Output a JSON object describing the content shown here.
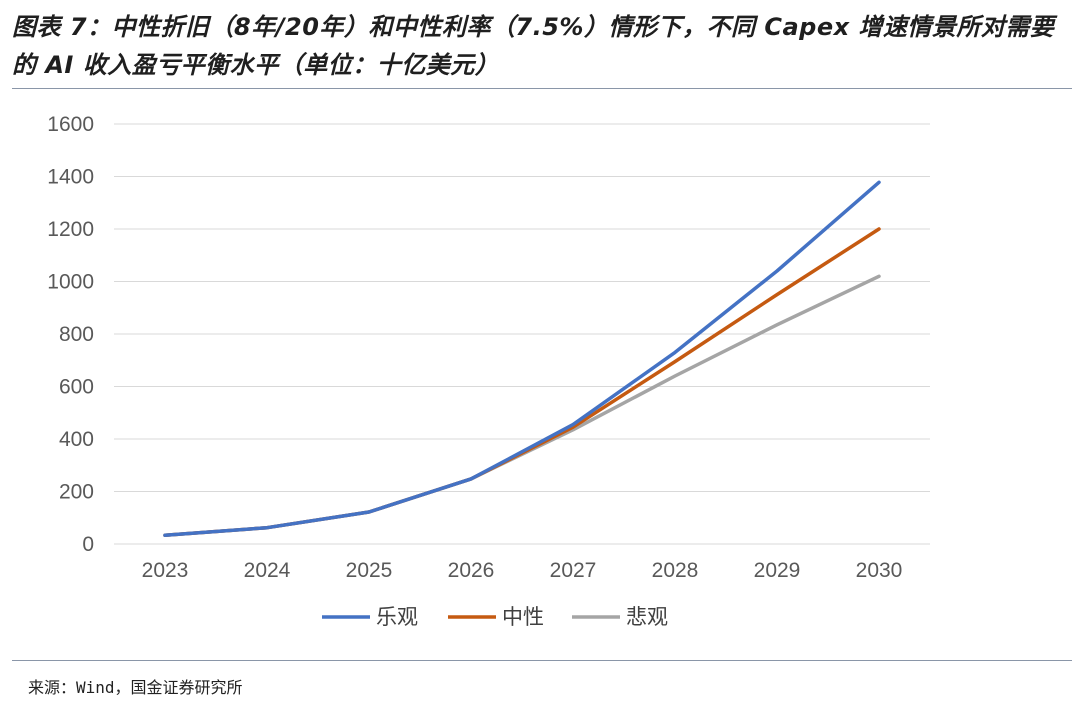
{
  "header": {
    "title": "图表 7：中性折旧（8年/20年）和中性利率（7.5%）情形下，不同 Capex 增速情景所对需要的 AI 收入盈亏平衡水平（单位：十亿美元）"
  },
  "footer": {
    "source": "来源：Wind，国金证券研究所"
  },
  "chart_data": {
    "type": "line",
    "title": "",
    "xlabel": "",
    "ylabel": "",
    "categories": [
      "2023",
      "2024",
      "2025",
      "2026",
      "2027",
      "2028",
      "2029",
      "2030"
    ],
    "ylim": [
      0,
      1600
    ],
    "yticks": [
      0,
      200,
      400,
      600,
      800,
      1000,
      1200,
      1400,
      1600
    ],
    "grid": true,
    "legend": "bottom",
    "series": [
      {
        "name": "乐观",
        "color": "#4472c4",
        "values": [
          33,
          62,
          122,
          248,
          455,
          730,
          1040,
          1378
        ]
      },
      {
        "name": "中性",
        "color": "#c55a11",
        "values": [
          33,
          62,
          122,
          248,
          445,
          695,
          950,
          1200
        ]
      },
      {
        "name": "悲观",
        "color": "#a5a5a5",
        "values": [
          33,
          62,
          122,
          248,
          435,
          640,
          835,
          1020
        ]
      }
    ]
  }
}
